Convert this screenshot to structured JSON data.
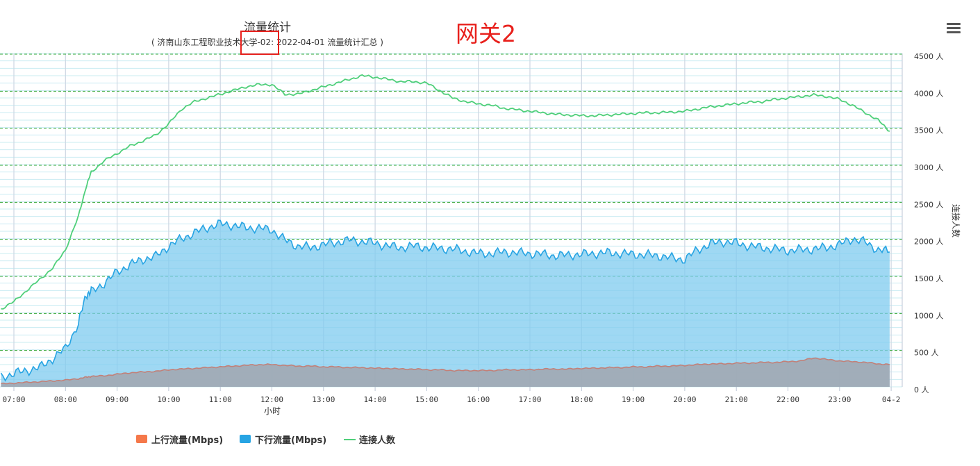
{
  "chart_data": {
    "type": "area",
    "title": "流量统计",
    "subtitle": "( 济南山东工程职业技术大学-02: 2022-04-01 流量统计汇总 )",
    "xlabel": "小时",
    "ylabel_right": "连接人数",
    "x_ticks": [
      "07:00",
      "08:00",
      "09:00",
      "10:00",
      "11:00",
      "12:00",
      "13:00",
      "14:00",
      "15:00",
      "16:00",
      "17:00",
      "18:00",
      "19:00",
      "20:00",
      "21:00",
      "22:00",
      "23:00",
      "04-2"
    ],
    "y_right_ticks": [
      "0 人",
      "500 人",
      "1000 人",
      "1500 人",
      "2000 人",
      "2500 人",
      "3000 人",
      "3500 人",
      "4000 人",
      "4500 人"
    ],
    "y_right_range": [
      0,
      4500
    ],
    "legend": {
      "position": "bottom",
      "items": [
        {
          "name": "上行流量(Mbps)",
          "color": "#f5784a"
        },
        {
          "name": "下行流量(Mbps)",
          "color": "#27a4e3"
        },
        {
          "name": "连接人数",
          "color": "#4fcf7a"
        }
      ]
    },
    "time_hours": [
      6.75,
      7.0,
      7.25,
      7.5,
      7.75,
      8.0,
      8.25,
      8.4,
      8.5,
      8.75,
      9.0,
      9.25,
      9.5,
      9.75,
      10.0,
      10.25,
      10.5,
      10.75,
      11.0,
      11.25,
      11.5,
      11.75,
      12.0,
      12.25,
      12.5,
      12.75,
      13.0,
      13.25,
      13.5,
      13.75,
      14.0,
      14.25,
      14.5,
      14.75,
      15.0,
      15.25,
      15.5,
      15.75,
      16.0,
      16.25,
      16.5,
      16.75,
      17.0,
      17.25,
      17.5,
      17.75,
      18.0,
      18.25,
      18.5,
      18.75,
      19.0,
      19.25,
      19.5,
      19.75,
      20.0,
      20.25,
      20.5,
      20.75,
      21.0,
      21.25,
      21.5,
      21.75,
      22.0,
      22.25,
      22.5,
      22.75,
      23.0,
      23.25,
      23.5,
      23.75,
      23.97
    ],
    "series": [
      {
        "name": "连接人数",
        "axis": "right",
        "values": [
          1050,
          1150,
          1300,
          1450,
          1600,
          1850,
          2300,
          2700,
          2900,
          3050,
          3150,
          3250,
          3320,
          3400,
          3550,
          3750,
          3850,
          3900,
          3950,
          4000,
          4050,
          4080,
          4080,
          3950,
          3950,
          4000,
          4050,
          4100,
          4150,
          4200,
          4180,
          4150,
          4120,
          4120,
          4100,
          4000,
          3900,
          3850,
          3820,
          3800,
          3760,
          3740,
          3720,
          3700,
          3680,
          3670,
          3660,
          3660,
          3670,
          3680,
          3690,
          3700,
          3700,
          3710,
          3720,
          3750,
          3780,
          3800,
          3820,
          3840,
          3850,
          3880,
          3900,
          3920,
          3940,
          3920,
          3880,
          3800,
          3700,
          3600,
          3450
        ]
      },
      {
        "name": "下行流量(Mbps)",
        "axis": "right",
        "values": [
          130,
          180,
          220,
          260,
          380,
          520,
          850,
          1250,
          1280,
          1400,
          1550,
          1650,
          1720,
          1760,
          1900,
          2000,
          2080,
          2150,
          2200,
          2180,
          2150,
          2140,
          2120,
          1980,
          1900,
          1880,
          1920,
          1950,
          1980,
          1960,
          1940,
          1900,
          1880,
          1900,
          1880,
          1870,
          1860,
          1830,
          1800,
          1800,
          1820,
          1810,
          1800,
          1790,
          1770,
          1780,
          1790,
          1800,
          1810,
          1800,
          1790,
          1780,
          1770,
          1740,
          1720,
          1850,
          1930,
          1960,
          1940,
          1900,
          1880,
          1860,
          1840,
          1850,
          1860,
          1880,
          1920,
          2000,
          1950,
          1850,
          1820
        ]
      },
      {
        "name": "上行流量(Mbps)",
        "axis": "right",
        "values": [
          40,
          50,
          60,
          70,
          80,
          90,
          110,
          130,
          140,
          150,
          170,
          190,
          200,
          210,
          230,
          240,
          250,
          260,
          270,
          280,
          290,
          300,
          300,
          290,
          280,
          280,
          270,
          270,
          260,
          260,
          250,
          250,
          240,
          240,
          230,
          230,
          220,
          220,
          220,
          220,
          230,
          230,
          230,
          240,
          240,
          240,
          250,
          250,
          260,
          260,
          270,
          270,
          280,
          280,
          290,
          300,
          310,
          310,
          320,
          320,
          330,
          330,
          340,
          350,
          390,
          370,
          350,
          340,
          330,
          310,
          300
        ]
      }
    ]
  },
  "annotation": {
    "tag": "网关2"
  },
  "toolbar": {
    "menu": "menu-icon"
  }
}
